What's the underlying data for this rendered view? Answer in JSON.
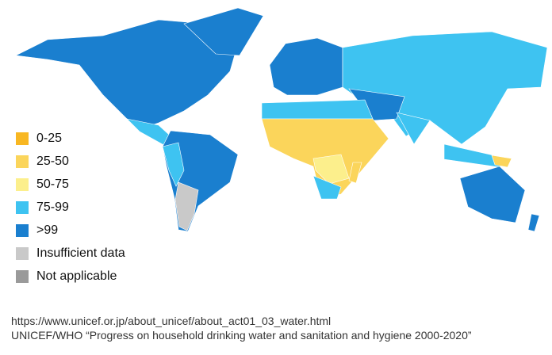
{
  "legend": [
    {
      "label": "0-25",
      "color": "#f8b722"
    },
    {
      "label": "25-50",
      "color": "#fbd55b"
    },
    {
      "label": "50-75",
      "color": "#fcef8c"
    },
    {
      "label": "75-99",
      "color": "#3ec3f1"
    },
    {
      "label": ">99",
      "color": "#1a7fcf"
    },
    {
      "label": "Insufficient data",
      "color": "#c9c9c9"
    },
    {
      "label": "Not applicable",
      "color": "#9a9a9a"
    }
  ],
  "source": {
    "url": "https://www.unicef.or.jp/about_unicef/about_act01_03_water.html",
    "citation": "UNICEF/WHO “Progress on household drinking water and sanitation and hygiene 2000-2020”"
  }
}
